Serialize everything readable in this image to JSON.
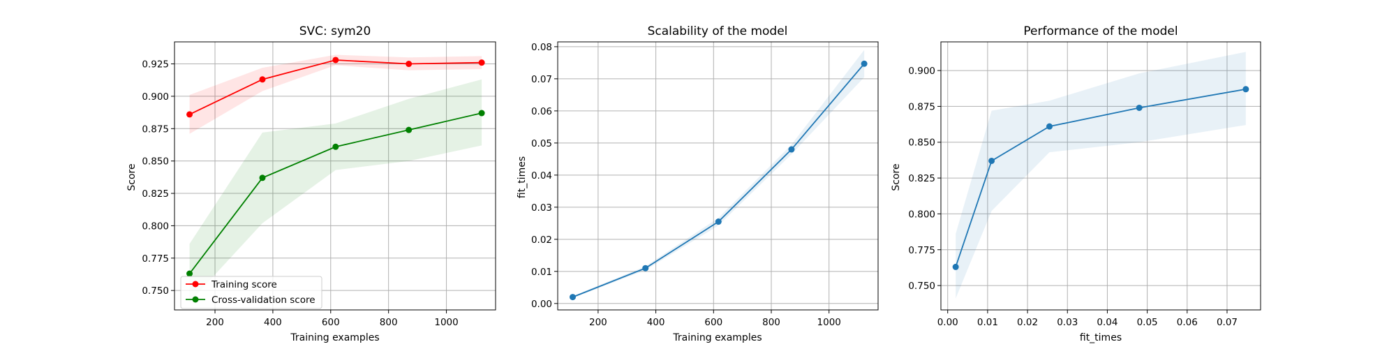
{
  "chart_data": [
    {
      "type": "line",
      "title": "SVC: sym20",
      "xlabel": "Training examples",
      "ylabel": "Score",
      "xlim": [
        60,
        1170
      ],
      "ylim": [
        0.735,
        0.942
      ],
      "xticks": [
        200,
        400,
        600,
        800,
        1000
      ],
      "yticks": [
        0.75,
        0.775,
        0.8,
        0.825,
        0.85,
        0.875,
        0.9,
        0.925
      ],
      "grid": true,
      "legend": "lower-left",
      "x": [
        112,
        364,
        617,
        870,
        1122
      ],
      "series": [
        {
          "name": "Training score",
          "color": "#ff0000",
          "values": [
            0.886,
            0.913,
            0.928,
            0.925,
            0.926
          ],
          "band_low": [
            0.871,
            0.904,
            0.924,
            0.92,
            0.921
          ],
          "band_high": [
            0.901,
            0.922,
            0.932,
            0.93,
            0.931
          ]
        },
        {
          "name": "Cross-validation score",
          "color": "#008000",
          "values": [
            0.763,
            0.837,
            0.861,
            0.874,
            0.887
          ],
          "band_low": [
            0.741,
            0.802,
            0.843,
            0.85,
            0.862
          ],
          "band_high": [
            0.786,
            0.872,
            0.879,
            0.898,
            0.913
          ]
        }
      ]
    },
    {
      "type": "line",
      "title": "Scalability of the model",
      "xlabel": "Training examples",
      "ylabel": "fit_times",
      "xlim": [
        60,
        1170
      ],
      "ylim": [
        -0.002,
        0.0815
      ],
      "xticks": [
        200,
        400,
        600,
        800,
        1000
      ],
      "yticks": [
        0.0,
        0.01,
        0.02,
        0.03,
        0.04,
        0.05,
        0.06,
        0.07,
        0.08
      ],
      "grid": true,
      "x": [
        112,
        364,
        617,
        870,
        1122
      ],
      "series": [
        {
          "color": "#1f77b4",
          "values": [
            0.002,
            0.011,
            0.0255,
            0.048,
            0.0747
          ],
          "band_low": [
            0.0017,
            0.0104,
            0.0243,
            0.0465,
            0.0705
          ],
          "band_high": [
            0.0023,
            0.0116,
            0.0267,
            0.0495,
            0.079
          ]
        }
      ]
    },
    {
      "type": "line",
      "title": "Performance of the model",
      "xlabel": "fit_times",
      "ylabel": "Score",
      "xlim": [
        -0.0017,
        0.0784
      ],
      "ylim": [
        0.733,
        0.92
      ],
      "xticks": [
        0.0,
        0.01,
        0.02,
        0.03,
        0.04,
        0.05,
        0.06,
        0.07
      ],
      "yticks": [
        0.75,
        0.775,
        0.8,
        0.825,
        0.85,
        0.875,
        0.9
      ],
      "grid": true,
      "x": [
        0.002,
        0.011,
        0.0255,
        0.048,
        0.0747
      ],
      "series": [
        {
          "color": "#1f77b4",
          "values": [
            0.763,
            0.837,
            0.861,
            0.874,
            0.887
          ],
          "band_low": [
            0.741,
            0.802,
            0.843,
            0.85,
            0.862
          ],
          "band_high": [
            0.786,
            0.872,
            0.879,
            0.898,
            0.913
          ]
        }
      ]
    }
  ]
}
